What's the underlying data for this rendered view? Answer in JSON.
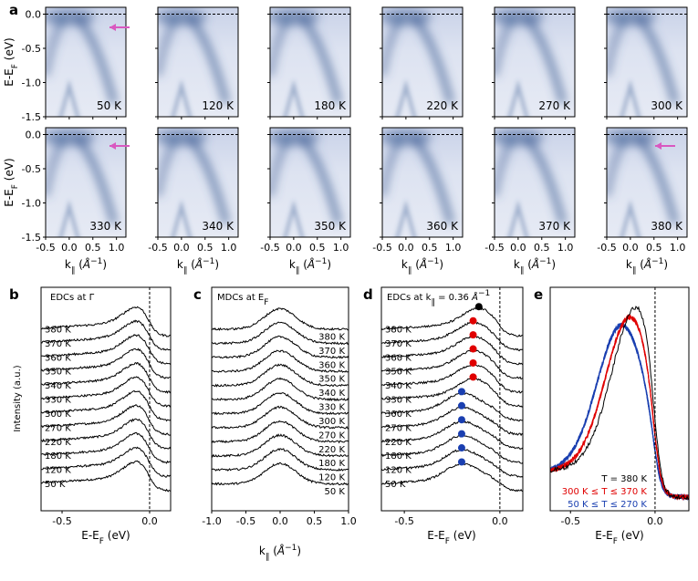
{
  "panel_letters": {
    "a": "a",
    "b": "b",
    "c": "c",
    "d": "d",
    "e": "e"
  },
  "colors": {
    "map_bg": "#dfe5f2",
    "band": "#3f5f95",
    "trace": "#000000",
    "red": "#e00000",
    "blue": "#1a3fb0",
    "arrow": "#d958c0"
  },
  "chart_data": [
    {
      "type": "heatmap",
      "panel": "a",
      "title": "",
      "xlabel": "k∥ (Å⁻¹)",
      "ylabel": "E-E_F (eV)",
      "xlim": [
        -0.5,
        1.2
      ],
      "ylim": [
        -1.5,
        0.1
      ],
      "xticks": [
        "-0.5",
        "0.0",
        "0.5",
        "1.0"
      ],
      "yticks": [
        "0.0",
        "-0.5",
        "-1.0",
        "-1.5"
      ],
      "temperatures_row1": [
        "50 K",
        "120 K",
        "180 K",
        "220 K",
        "270 K",
        "300 K"
      ],
      "temperatures_row2": [
        "330 K",
        "340 K",
        "350 K",
        "360 K",
        "370 K",
        "380 K"
      ],
      "fermi_level_line": 0.0
    },
    {
      "type": "line",
      "panel": "b",
      "title": "EDCs at Γ",
      "xlabel": "E-E_F (eV)",
      "ylabel": "Intensity (a.u.)",
      "xlim": [
        -0.62,
        0.12
      ],
      "xticks": [
        "-0.5",
        "0.0"
      ],
      "series": [
        "50 K",
        "120 K",
        "180 K",
        "220 K",
        "270 K",
        "300 K",
        "330 K",
        "340 K",
        "350 K",
        "360 K",
        "370 K",
        "380 K"
      ]
    },
    {
      "type": "line",
      "panel": "c",
      "title": "MDCs at E_F",
      "xlabel": "k∥ (Å⁻¹)",
      "xlim": [
        -1.0,
        1.0
      ],
      "xticks": [
        "-1.0",
        "-0.5",
        "0.0",
        "0.5",
        "1.0"
      ],
      "series": [
        "50 K",
        "120 K",
        "180 K",
        "220 K",
        "270 K",
        "300 K",
        "330 K",
        "340 K",
        "350 K",
        "360 K",
        "370 K",
        "380 K"
      ]
    },
    {
      "type": "line",
      "panel": "d",
      "title": "EDCs at k∥ = 0.36 Å⁻¹",
      "xlabel": "E-E_F (eV)",
      "xlim": [
        -0.62,
        0.12
      ],
      "xticks": [
        "-0.5",
        "0.0"
      ],
      "series": [
        "50 K",
        "120 K",
        "180 K",
        "220 K",
        "270 K",
        "300 K",
        "330 K",
        "340 K",
        "350 K",
        "360 K",
        "370 K",
        "380 K"
      ],
      "peak_positions_eV": [
        -0.2,
        -0.2,
        -0.2,
        -0.2,
        -0.2,
        -0.2,
        -0.14,
        -0.14,
        -0.14,
        -0.14,
        -0.14,
        -0.11
      ],
      "marker_colors": [
        "blue",
        "blue",
        "blue",
        "blue",
        "blue",
        "blue",
        "red",
        "red",
        "red",
        "red",
        "red",
        "black"
      ]
    },
    {
      "type": "line",
      "panel": "e",
      "xlabel": "E-E_F (eV)",
      "xlim": [
        -0.62,
        0.2
      ],
      "xticks": [
        "-0.5",
        "0.0"
      ],
      "legend": [
        "T = 380 K",
        "300 K ≤ T ≤ 370 K",
        "50 K ≤ T ≤ 270 K"
      ]
    }
  ]
}
